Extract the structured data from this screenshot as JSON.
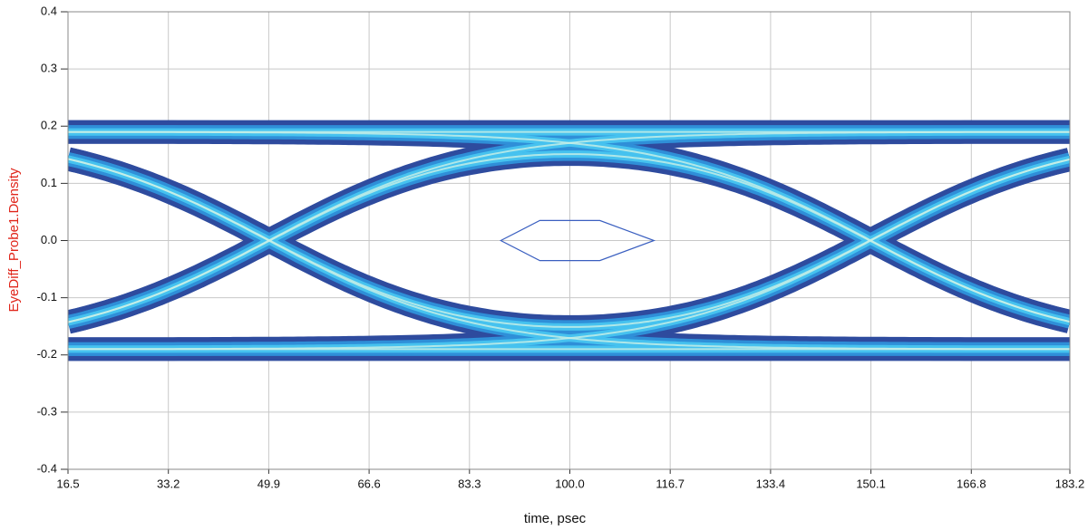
{
  "chart_data": {
    "type": "eye",
    "x_label": "time, psec",
    "y_label": "EyeDiff_Probe1.Density",
    "y_label_color": "#e0261b",
    "xlim": [
      16.5,
      183.2
    ],
    "xticks": [
      16.5,
      33.2,
      49.9,
      66.6,
      83.3,
      {
        "value": 100,
        "label": "100.0"
      },
      116.7,
      133.4,
      150.1,
      166.8,
      183.2
    ],
    "ylim": [
      -0.4,
      0.4
    ],
    "yticks": [
      -0.4,
      -0.3,
      -0.2,
      -0.1,
      {
        "value": 0,
        "label": "0.0"
      },
      0.1,
      0.2,
      0.3,
      0.4
    ],
    "grid": true,
    "eye": {
      "amplitude": 0.19,
      "crossings": [
        49.9,
        150.1
      ]
    },
    "mask": {
      "x": [
        88.5,
        95,
        105,
        114,
        105,
        95
      ],
      "y": [
        0,
        0.035,
        0.035,
        0,
        -0.035,
        -0.035
      ],
      "color": "#3a5fc0"
    },
    "colors": [
      "#2e4b9e",
      "#2f8fd8",
      "#46c2ef",
      "#c9f0e6"
    ]
  }
}
